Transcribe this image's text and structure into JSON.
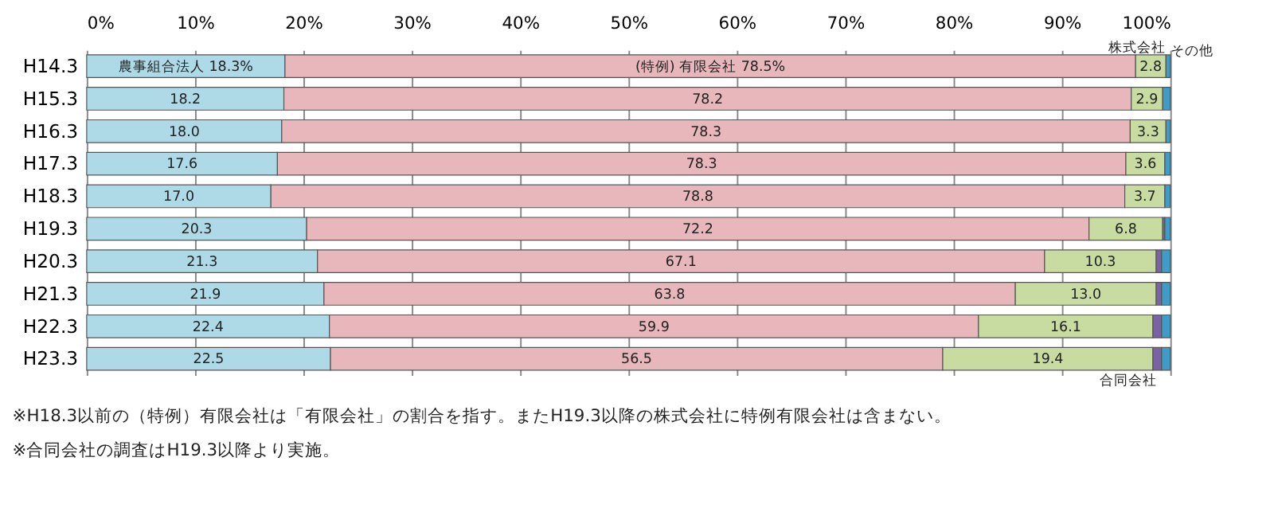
{
  "chart_data": {
    "type": "bar",
    "orientation": "horizontal",
    "stacked": true,
    "legend": false,
    "grid": "x",
    "categories": [
      "H14.3",
      "H15.3",
      "H16.3",
      "H17.3",
      "H18.3",
      "H19.3",
      "H20.3",
      "H21.3",
      "H22.3",
      "H23.3"
    ],
    "xlim": [
      0,
      100
    ],
    "xticks": [
      {
        "value": 0,
        "label": "0%"
      },
      {
        "value": 10,
        "label": "10%"
      },
      {
        "value": 20,
        "label": "20%"
      },
      {
        "value": 30,
        "label": "30%"
      },
      {
        "value": 40,
        "label": "40%"
      },
      {
        "value": 50,
        "label": "50%"
      },
      {
        "value": 60,
        "label": "60%"
      },
      {
        "value": 70,
        "label": "70%"
      },
      {
        "value": 80,
        "label": "80%"
      },
      {
        "value": 90,
        "label": "90%"
      },
      {
        "value": 100,
        "label": "100%"
      }
    ],
    "series": [
      {
        "name": "農事組合法人",
        "color": "#aed9e6",
        "values": [
          18.3,
          18.2,
          18.0,
          17.6,
          17.0,
          20.3,
          21.3,
          21.9,
          22.4,
          22.5
        ],
        "value_labels": [
          "18.3%",
          "18.2",
          "18.0",
          "17.6",
          "17.0",
          "20.3",
          "21.3",
          "21.9",
          "22.4",
          "22.5"
        ]
      },
      {
        "name": "(特例) 有限会社",
        "color": "#e8b7bb",
        "values": [
          78.5,
          78.2,
          78.3,
          78.3,
          78.8,
          72.2,
          67.1,
          63.8,
          59.9,
          56.5
        ],
        "value_labels": [
          "78.5%",
          "78.2",
          "78.3",
          "78.3",
          "78.8",
          "72.2",
          "67.1",
          "63.8",
          "59.9",
          "56.5"
        ]
      },
      {
        "name": "株式会社",
        "color": "#c8dca2",
        "values": [
          2.8,
          2.9,
          3.3,
          3.6,
          3.7,
          6.8,
          10.3,
          13.0,
          16.1,
          19.4
        ],
        "value_labels": [
          "2.8",
          "2.9",
          "3.3",
          "3.6",
          "3.7",
          "6.8",
          "10.3",
          "13.0",
          "16.1",
          "19.4"
        ]
      },
      {
        "name": "合同会社",
        "color": "#7a62a6",
        "values": [
          null,
          null,
          null,
          null,
          null,
          0.2,
          0.5,
          0.5,
          0.8,
          0.8
        ]
      },
      {
        "name": "その他",
        "color": "#3f9cc6",
        "values": [
          0.4,
          0.7,
          0.4,
          0.5,
          0.5,
          0.5,
          0.8,
          0.8,
          0.8,
          0.8
        ]
      }
    ],
    "annotations": [
      "※H18.3以前の（特例）有限会社は「有限会社」の割合を指す。またH19.3以降の株式会社に特例有限会社は含まない。",
      "※合同会社の調査はH19.3以降より実施。"
    ]
  }
}
